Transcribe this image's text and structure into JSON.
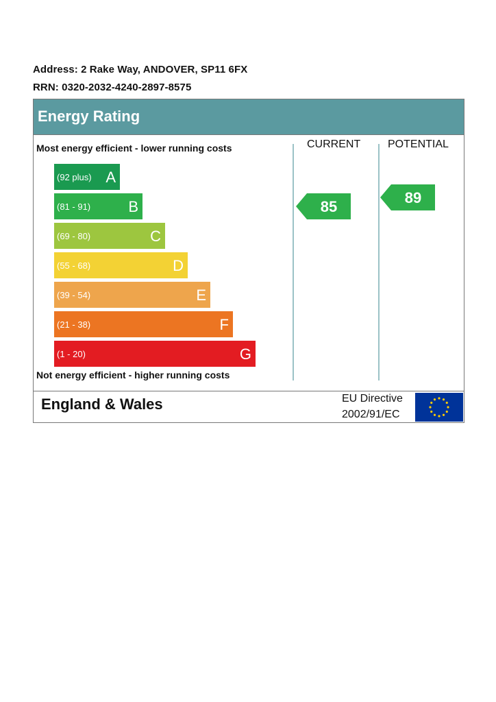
{
  "address": "Address: 2 Rake Way, ANDOVER, SP11 6FX",
  "rrn": "RRN: 0320-2032-4240-2897-8575",
  "header": {
    "title": "Energy Rating"
  },
  "captions": {
    "top": "Most energy efficient - lower running costs",
    "bottom": "Not energy efficient - higher running costs"
  },
  "columns": {
    "current": "CURRENT",
    "potential": "POTENTIAL"
  },
  "footer": {
    "region": "England & Wales",
    "directive_line1": "EU Directive",
    "directive_line2": "2002/91/EC"
  },
  "chart_data": {
    "type": "bar",
    "title": "Energy Rating",
    "bands": [
      {
        "letter": "A",
        "range": "(92 plus)",
        "min": 92,
        "max": 100,
        "color": "#1a9a50"
      },
      {
        "letter": "B",
        "range": "(81 - 91)",
        "min": 81,
        "max": 91,
        "color": "#2eb04b"
      },
      {
        "letter": "C",
        "range": "(69 - 80)",
        "min": 69,
        "max": 80,
        "color": "#9dc63f"
      },
      {
        "letter": "D",
        "range": "(55 - 68)",
        "min": 55,
        "max": 68,
        "color": "#f3d234"
      },
      {
        "letter": "E",
        "range": "(39 - 54)",
        "min": 39,
        "max": 54,
        "color": "#eea54c"
      },
      {
        "letter": "F",
        "range": "(21 - 38)",
        "min": 21,
        "max": 38,
        "color": "#ec7522"
      },
      {
        "letter": "G",
        "range": "(1 - 20)",
        "min": 1,
        "max": 20,
        "color": "#e31c22"
      }
    ],
    "current": {
      "value": 85,
      "band": "B",
      "color": "#2eb04b"
    },
    "potential": {
      "value": 89,
      "band": "B",
      "color": "#2eb04b"
    }
  },
  "colors": {
    "header": "#5b9aa0",
    "divider": "#9bc2c6",
    "eu_blue": "#003399",
    "eu_star": "#ffcc00"
  },
  "icons": {
    "flag": "eu-flag-icon"
  }
}
